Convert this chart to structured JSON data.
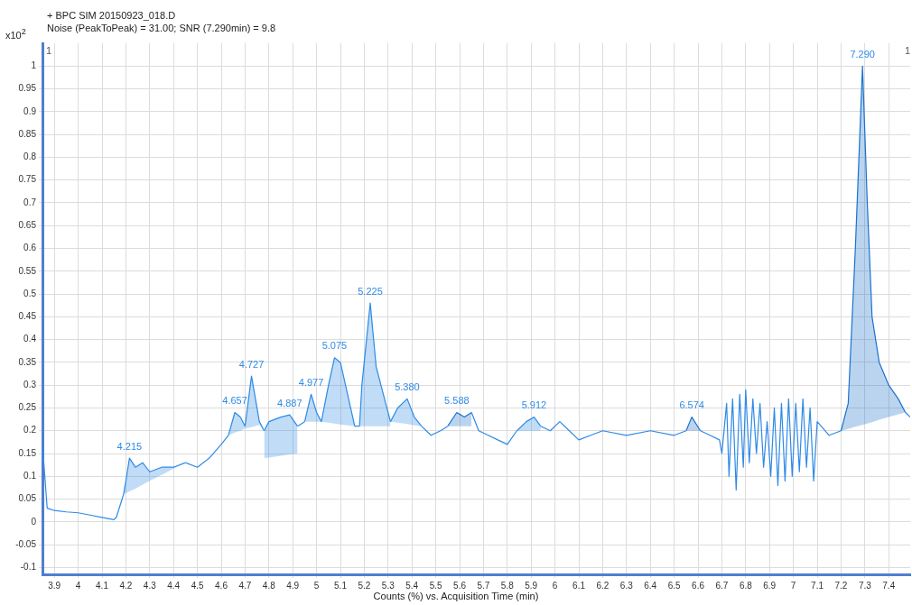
{
  "chart_data": {
    "type": "line",
    "title": "+ BPC SIM 20150923_018.D",
    "subtitle": "Noise (PeakToPeak) = 31.00; SNR (7.290min) = 9.8",
    "ylabel": "x10$^{2}$",
    "xlabel": "Counts (%) vs. Acquisition Time (min)",
    "xlim": [
      3.85,
      7.49
    ],
    "xticks": [
      3.9,
      4,
      4.1,
      4.2,
      4.3,
      4.4,
      4.5,
      4.6,
      4.7,
      4.8,
      4.9,
      5,
      5.1,
      5.2,
      5.3,
      5.4,
      5.5,
      5.6,
      5.7,
      5.8,
      5.9,
      6,
      6.1,
      6.2,
      6.3,
      6.4,
      6.5,
      6.6,
      6.7,
      6.8,
      6.9,
      7,
      7.1,
      7.2,
      7.3,
      7.4
    ],
    "ylim": [
      -0.115,
      1.05
    ],
    "yticks": [
      -0.1,
      -0.05,
      0,
      0.05,
      0.1,
      0.15,
      0.2,
      0.25,
      0.3,
      0.35,
      0.4,
      0.45,
      0.5,
      0.55,
      0.6,
      0.65,
      0.7,
      0.75,
      0.8,
      0.85,
      0.9,
      0.95,
      1
    ],
    "grid": true,
    "legend": false,
    "marker": "none",
    "line_style": "solid",
    "series": [
      {
        "type": "line",
        "color": "#2e8ae6",
        "x": [
          3.85,
          3.87,
          3.9,
          3.95,
          4.0,
          4.05,
          4.1,
          4.15,
          4.16,
          4.19,
          4.2,
          4.215,
          4.24,
          4.27,
          4.3,
          4.35,
          4.4,
          4.45,
          4.5,
          4.55,
          4.6,
          4.63,
          4.657,
          4.68,
          4.7,
          4.727,
          4.76,
          4.78,
          4.8,
          4.85,
          4.887,
          4.92,
          4.95,
          4.977,
          5.0,
          5.02,
          5.05,
          5.075,
          5.1,
          5.13,
          5.16,
          5.18,
          5.19,
          5.225,
          5.25,
          5.28,
          5.31,
          5.34,
          5.38,
          5.41,
          5.44,
          5.48,
          5.52,
          5.55,
          5.588,
          5.62,
          5.65,
          5.68,
          5.72,
          5.76,
          5.8,
          5.84,
          5.88,
          5.912,
          5.94,
          5.98,
          6.02,
          6.06,
          6.1,
          6.15,
          6.2,
          6.3,
          6.4,
          6.5,
          6.55,
          6.574,
          6.61,
          6.65,
          6.69,
          6.7,
          6.72,
          6.73,
          6.745,
          6.76,
          6.775,
          6.79,
          6.8,
          6.815,
          6.83,
          6.845,
          6.86,
          6.875,
          6.89,
          6.905,
          6.92,
          6.935,
          6.95,
          6.965,
          6.98,
          6.995,
          7.01,
          7.025,
          7.04,
          7.055,
          7.07,
          7.085,
          7.1,
          7.15,
          7.2,
          7.23,
          7.26,
          7.29,
          7.31,
          7.33,
          7.36,
          7.4,
          7.44,
          7.47,
          7.49
        ],
        "values": [
          0.17,
          0.03,
          0.025,
          0.022,
          0.02,
          0.015,
          0.01,
          0.005,
          0.01,
          0.06,
          null,
          null,
          null,
          null,
          null,
          null,
          null,
          0.13,
          0.12,
          0.14,
          0.17,
          0.19,
          null,
          null,
          null,
          null,
          null,
          null,
          null,
          null,
          null,
          0.21,
          0.22,
          null,
          null,
          null,
          null,
          null,
          null,
          null,
          0.21,
          0.21,
          null,
          null,
          null,
          null,
          null,
          null,
          null,
          null,
          0.21,
          0.19,
          0.2,
          0.21,
          null,
          null,
          0.24,
          0.2,
          0.19,
          0.18,
          0.17,
          0.2,
          null,
          null,
          0.21,
          0.2,
          0.22,
          0.2,
          0.18,
          0.19,
          0.2,
          0.19,
          0.2,
          0.19,
          0.2,
          null,
          0.2,
          0.19,
          0.18,
          0.15,
          0.26,
          0.1,
          0.27,
          0.07,
          0.28,
          0.12,
          0.29,
          0.13,
          0.27,
          0.15,
          0.26,
          0.12,
          0.22,
          0.1,
          0.25,
          0.08,
          0.26,
          0.09,
          0.27,
          0.1,
          0.26,
          0.11,
          0.27,
          0.12,
          0.25,
          0.09,
          0.22,
          0.19,
          0.2,
          null,
          null,
          null,
          null,
          null,
          null,
          null,
          null,
          0.24,
          0.23
        ]
      },
      {
        "type": "line",
        "color": "#2e8ae6",
        "x": [
          4.19,
          4.2,
          4.215,
          4.24,
          4.27,
          4.3,
          4.35,
          4.4,
          4.45
        ],
        "values": [
          0.06,
          0.09,
          0.14,
          0.12,
          0.13,
          0.11,
          0.12,
          0.12,
          0.13
        ],
        "upper": [
          0.06,
          0.09,
          0.14,
          0.12,
          0.13,
          0.11,
          0.12,
          0.12,
          0.13
        ],
        "lower": [
          0.06,
          0.063,
          0.067,
          0.073,
          0.082,
          0.09,
          0.103,
          0.117,
          0.13
        ]
      },
      {
        "type": "line",
        "color": "#2e8ae6",
        "x": [
          4.63,
          4.657,
          4.68,
          4.7
        ],
        "values": [
          0.19,
          0.24,
          0.23,
          0.21
        ],
        "upper": [
          0.19,
          0.24,
          0.23,
          0.21
        ],
        "lower": [
          0.19,
          0.196,
          0.2,
          0.205
        ]
      },
      {
        "type": "line",
        "color": "#2e8ae6",
        "x": [
          4.7,
          4.727,
          4.76,
          4.78
        ],
        "values": [
          0.21,
          0.32,
          0.22,
          0.2
        ],
        "upper": [
          0.21,
          0.32,
          0.22,
          0.2
        ],
        "lower": [
          0.205,
          0.208,
          0.213,
          0.2
        ]
      },
      {
        "type": "line",
        "color": "#2e8ae6",
        "x": [
          4.78,
          4.8,
          4.85,
          4.887,
          4.92
        ],
        "values": [
          0.2,
          0.22,
          0.23,
          0.235,
          0.21
        ],
        "upper": [
          0.2,
          0.22,
          0.23,
          0.235,
          0.21
        ],
        "lower": [
          0.14,
          0.141,
          0.145,
          0.148,
          0.15
        ]
      },
      {
        "type": "line",
        "color": "#2e8ae6",
        "x": [
          4.95,
          4.977,
          5.0,
          5.02
        ],
        "values": [
          0.22,
          0.28,
          0.24,
          0.22
        ],
        "upper": [
          0.22,
          0.28,
          0.24,
          0.22
        ],
        "lower": [
          0.22,
          0.22,
          0.22,
          0.22
        ]
      },
      {
        "type": "line",
        "color": "#2e8ae6",
        "x": [
          5.02,
          5.05,
          5.075,
          5.1,
          5.13,
          5.16
        ],
        "values": [
          0.22,
          0.3,
          0.36,
          0.35,
          0.28,
          0.21
        ],
        "upper": [
          0.22,
          0.3,
          0.36,
          0.35,
          0.28,
          0.21
        ],
        "lower": [
          0.22,
          0.218,
          0.216,
          0.214,
          0.212,
          0.21
        ]
      },
      {
        "type": "line",
        "color": "#2e8ae6",
        "x": [
          5.18,
          5.19,
          5.225,
          5.25,
          5.28,
          5.31
        ],
        "values": [
          0.21,
          0.3,
          0.48,
          0.34,
          0.28,
          0.22
        ],
        "upper": [
          0.21,
          0.3,
          0.48,
          0.34,
          0.28,
          0.22
        ],
        "lower": [
          0.21,
          0.21,
          0.21,
          0.21,
          0.21,
          0.21
        ]
      },
      {
        "type": "line",
        "color": "#2e8ae6",
        "x": [
          5.31,
          5.34,
          5.38,
          5.41,
          5.44
        ],
        "values": [
          0.22,
          0.25,
          0.27,
          0.23,
          0.21
        ],
        "upper": [
          0.22,
          0.25,
          0.27,
          0.23,
          0.21
        ],
        "lower": [
          0.22,
          0.218,
          0.215,
          0.212,
          0.21
        ]
      },
      {
        "type": "line",
        "color": "#1c72cc",
        "x": [
          5.55,
          5.588,
          5.62,
          5.65
        ],
        "values": [
          0.21,
          0.24,
          0.23,
          0.24
        ],
        "upper": [
          0.21,
          0.24,
          0.23,
          0.24
        ],
        "lower": [
          0.21,
          0.21,
          0.21,
          0.21
        ]
      },
      {
        "type": "line",
        "color": "#2e8ae6",
        "x": [
          5.84,
          5.88,
          5.912,
          5.94
        ],
        "values": [
          0.2,
          0.22,
          0.23,
          0.21
        ],
        "upper": [
          0.2,
          0.22,
          0.23,
          0.21
        ],
        "lower": [
          0.2,
          0.2,
          0.2,
          0.2
        ]
      },
      {
        "type": "line",
        "color": "#1c72cc",
        "x": [
          6.55,
          6.574,
          6.61
        ],
        "values": [
          0.2,
          0.23,
          0.2
        ],
        "upper": [
          0.2,
          0.23,
          0.2
        ],
        "lower": [
          0.2,
          0.2,
          0.2
        ]
      },
      {
        "type": "line",
        "color": "#1c72cc",
        "x": [
          7.2,
          7.23,
          7.26,
          7.29,
          7.31,
          7.33,
          7.36,
          7.4,
          7.44,
          7.47
        ],
        "values": [
          0.2,
          0.26,
          0.6,
          1.0,
          0.7,
          0.45,
          0.35,
          0.3,
          0.27,
          0.24
        ],
        "upper": [
          0.2,
          0.26,
          0.6,
          1.0,
          0.7,
          0.45,
          0.35,
          0.3,
          0.27,
          0.24
        ],
        "lower": [
          0.2,
          0.204,
          0.209,
          0.213,
          0.216,
          0.219,
          0.224,
          0.23,
          0.236,
          0.24
        ]
      }
    ],
    "annotations": [
      "1",
      "1",
      {
        "text": "4.215",
        "x": 4.215,
        "y": 0.14
      },
      {
        "text": "4.657",
        "x": 4.657,
        "y": 0.24
      },
      {
        "text": "4.727",
        "x": 4.727,
        "y": 0.32
      },
      {
        "text": "4.887",
        "x": 4.887,
        "y": 0.235
      },
      {
        "text": "4.977",
        "x": 4.977,
        "y": 0.28
      },
      {
        "text": "5.075",
        "x": 5.075,
        "y": 0.36
      },
      {
        "text": "5.225",
        "x": 5.225,
        "y": 0.48
      },
      {
        "text": "5.380",
        "x": 5.38,
        "y": 0.27
      },
      {
        "text": "5.588",
        "x": 5.588,
        "y": 0.24
      },
      {
        "text": "5.912",
        "x": 5.912,
        "y": 0.23
      },
      {
        "text": "6.574",
        "x": 6.574,
        "y": 0.23
      },
      {
        "text": "7.290",
        "x": 7.29,
        "y": 1.0
      }
    ]
  }
}
